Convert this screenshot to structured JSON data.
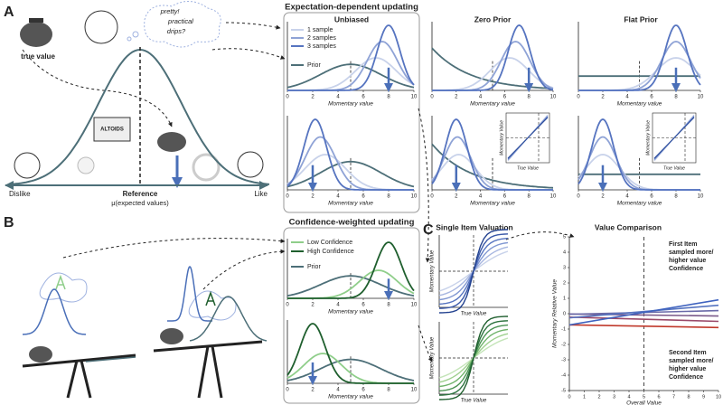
{
  "panel_a": {
    "label": "A",
    "true_value": "true value",
    "thought": [
      "pretty!",
      "practical",
      "drips?"
    ],
    "tin": "ALTOIDS",
    "axis_left": "Dislike",
    "axis_right": "Like",
    "reference": "Reference",
    "reference_sub": "μ(expected values)"
  },
  "expectation": {
    "title": "Expectation-dependent updating",
    "columns": [
      "Unbiased",
      "Zero Prior",
      "Flat Prior"
    ],
    "legend": [
      "1 sample",
      "2 samples",
      "3 samples",
      "Prior"
    ],
    "xlabel": "Momentary value",
    "xticks": [
      0,
      2,
      4,
      6,
      8,
      10
    ],
    "inset_xlabel": "True Value",
    "inset_ylabel": "Momentary Value"
  },
  "panel_b": {
    "label": "B"
  },
  "confidence": {
    "title": "Confidence-weighted updating",
    "legend": [
      "Low Confidence",
      "High Confidence",
      "Prior"
    ],
    "xlabel": "Momentary value"
  },
  "panel_c": {
    "label": "C",
    "single_title": "Single Item Valuation",
    "single_ylabel": "Momentary Value",
    "single_xlabel": "True Value",
    "comparison_title": "Value Comparison",
    "comparison_ylabel": "Momentary Relative Value",
    "comparison_xlabel": "Overall Value",
    "yticks": [
      -5,
      -4,
      -3,
      -2,
      -1,
      0,
      1,
      2,
      3,
      4,
      5
    ],
    "xticks": [
      0,
      1,
      2,
      3,
      4,
      5,
      6,
      7,
      8,
      9,
      10
    ],
    "first": [
      "First Item",
      "sampled more/",
      "higher value",
      "Confidence"
    ],
    "second": [
      "Second Item",
      "sampled more/",
      "higher value",
      "Confidence"
    ]
  }
}
